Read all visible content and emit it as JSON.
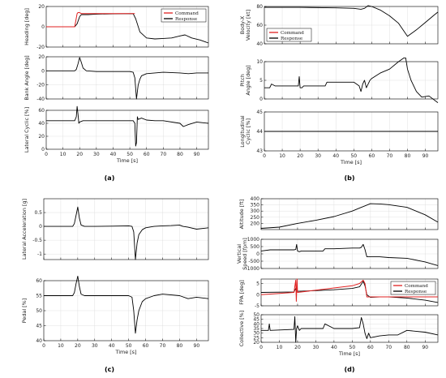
{
  "figure_labels": [
    "(a)",
    "(b)",
    "(c)",
    "(d)"
  ],
  "x_axis_label": "Time [s]",
  "legend": {
    "command": "Command",
    "response": "Response"
  },
  "colors": {
    "command": "#e02020",
    "response": "#000000",
    "grid": "#d9d9d9"
  },
  "chart_data": [
    {
      "type": "line",
      "id": "a1",
      "panel": "(a)",
      "ylabel": "Heading [deg]",
      "xlim": [
        0,
        97
      ],
      "ylim": [
        -20,
        20
      ],
      "yticks": [
        -20,
        0,
        20
      ],
      "legend": [
        "Command",
        "Response"
      ],
      "legend_position": "top-right",
      "grid": true,
      "series": [
        {
          "name": "Command",
          "color": "#e02020",
          "x": [
            0,
            17,
            18.5,
            19,
            20,
            21,
            21.5,
            53
          ],
          "y": [
            0,
            0,
            13,
            14,
            14,
            13,
            13,
            13
          ]
        },
        {
          "name": "Response",
          "color": "#000000",
          "x": [
            0,
            17,
            18.5,
            20,
            21,
            25,
            30,
            40,
            52,
            53.5,
            56,
            60,
            65,
            70,
            75,
            80,
            83,
            87,
            92,
            97
          ],
          "y": [
            0,
            0,
            3,
            10,
            12,
            12,
            12.5,
            12.8,
            13,
            8,
            -5,
            -11,
            -12,
            -11.5,
            -11,
            -9,
            -8,
            -11,
            -13,
            -16
          ]
        }
      ]
    },
    {
      "type": "line",
      "id": "a2",
      "panel": "(a)",
      "ylabel": "Bank Angle [deg]",
      "xlim": [
        0,
        97
      ],
      "ylim": [
        -40,
        20
      ],
      "yticks": [
        -40,
        -20,
        0,
        20
      ],
      "grid": true,
      "series": [
        {
          "name": "Response",
          "color": "#000000",
          "x": [
            0,
            17,
            18,
            19,
            20,
            21,
            22,
            24,
            30,
            40,
            50,
            52,
            53,
            54,
            55,
            56,
            57,
            60,
            65,
            70,
            80,
            85,
            90,
            97
          ],
          "y": [
            0,
            0,
            2,
            10,
            19,
            12,
            4,
            0,
            -1,
            -1,
            -1,
            -2,
            -10,
            -40,
            -20,
            -12,
            -7,
            -4,
            -3,
            -2,
            -3,
            -4,
            -3,
            -3
          ]
        }
      ]
    },
    {
      "type": "line",
      "id": "a3",
      "panel": "(a)",
      "ylabel": "Lateral Cyclic [%]",
      "xlabel": "Time [s]",
      "xlim": [
        0,
        97
      ],
      "ylim": [
        0,
        60
      ],
      "yticks": [
        0,
        20,
        40,
        60
      ],
      "xticks": [
        0,
        10,
        20,
        30,
        40,
        50,
        60,
        70,
        80,
        90
      ],
      "grid": true,
      "series": [
        {
          "name": "Response",
          "color": "#000000",
          "x": [
            0,
            17,
            18,
            18.5,
            19,
            19.5,
            20,
            22,
            30,
            40,
            50,
            52,
            53,
            53.5,
            54,
            54.5,
            55,
            57,
            60,
            65,
            70,
            80,
            82,
            85,
            90,
            97
          ],
          "y": [
            44,
            44,
            50,
            66,
            54,
            40,
            42,
            44,
            44,
            44,
            44,
            44,
            40,
            5,
            10,
            50,
            46,
            48,
            45,
            44,
            44,
            40,
            35,
            38,
            42,
            40
          ]
        }
      ]
    },
    {
      "type": "line",
      "id": "b1",
      "panel": "(b)",
      "ylabel": "Body-X Velocity [kt]",
      "xlim": [
        0,
        97
      ],
      "ylim": [
        40,
        80
      ],
      "yticks": [
        40,
        60,
        80
      ],
      "legend": [
        "Command",
        "Response"
      ],
      "legend_position": "bottom-left",
      "grid": true,
      "series": [
        {
          "name": "Response",
          "color": "#000000",
          "x": [
            0,
            20,
            40,
            50,
            54,
            56,
            58,
            60,
            65,
            70,
            75,
            80,
            85,
            90,
            95,
            97
          ],
          "y": [
            79,
            79,
            78.5,
            78,
            77,
            78,
            81,
            80,
            76,
            70,
            62,
            48,
            55,
            63,
            71,
            74
          ]
        }
      ]
    },
    {
      "type": "line",
      "id": "b2",
      "panel": "(b)",
      "ylabel": "Pitch Angle [deg]",
      "xlim": [
        0,
        97
      ],
      "ylim": [
        0,
        10
      ],
      "yticks": [
        0,
        5,
        10
      ],
      "grid": true,
      "series": [
        {
          "name": "Response",
          "color": "#000000",
          "x": [
            0,
            3,
            4,
            6,
            18,
            19,
            19.5,
            20,
            21,
            22,
            30,
            34,
            35,
            40,
            50,
            53,
            54,
            55,
            56,
            57,
            58,
            59,
            60,
            65,
            70,
            75,
            78,
            79,
            80,
            82,
            85,
            88,
            92,
            97
          ],
          "y": [
            3,
            3,
            4,
            3.5,
            3.5,
            3.5,
            6,
            3,
            3,
            3.5,
            3.5,
            3.5,
            4.5,
            4.5,
            4.5,
            3.5,
            2,
            4,
            5,
            3,
            4,
            5,
            5.5,
            7,
            8,
            10,
            11,
            11,
            8,
            5,
            2,
            0.5,
            0.8,
            -1
          ]
        }
      ]
    },
    {
      "type": "line",
      "id": "b3",
      "panel": "(b)",
      "ylabel": "Longitudinal Cyclic [%]",
      "xlabel": "Time [s]",
      "xlim": [
        0,
        97
      ],
      "ylim": [
        43,
        45
      ],
      "yticks": [
        43,
        44,
        45
      ],
      "xticks": [
        0,
        10,
        20,
        30,
        40,
        50,
        60,
        70,
        80,
        90
      ],
      "grid": true,
      "series": [
        {
          "name": "Response",
          "color": "#000000",
          "x": [
            0,
            97
          ],
          "y": [
            44,
            44
          ]
        }
      ]
    },
    {
      "type": "line",
      "id": "c1",
      "panel": "(c)",
      "ylabel": "Lateral Acceleration [g]",
      "xlim": [
        0,
        97
      ],
      "ylim": [
        -1.2,
        1
      ],
      "yticks": [
        -1,
        -0.5,
        0,
        0.5
      ],
      "grid": true,
      "series": [
        {
          "name": "Response",
          "color": "#000000",
          "x": [
            0,
            17,
            18,
            19,
            20,
            21,
            22,
            24,
            30,
            40,
            50,
            52,
            53,
            54,
            55,
            56,
            58,
            60,
            65,
            70,
            75,
            80,
            82,
            85,
            90,
            97
          ],
          "y": [
            0,
            0,
            0.1,
            0.4,
            0.7,
            0.3,
            0.05,
            0,
            0,
            0.01,
            0.02,
            0,
            -0.2,
            -1.2,
            -0.6,
            -0.3,
            -0.12,
            -0.05,
            0,
            0.02,
            0.03,
            0.05,
            0,
            -0.03,
            -0.1,
            -0.05
          ]
        }
      ]
    },
    {
      "type": "line",
      "id": "c2",
      "panel": "(c)",
      "ylabel": "Pedal [%]",
      "xlabel": "Time [s]",
      "xlim": [
        0,
        97
      ],
      "ylim": [
        40,
        60
      ],
      "yticks": [
        40,
        45,
        50,
        55,
        60
      ],
      "xticks": [
        0,
        10,
        20,
        30,
        40,
        50,
        60,
        70,
        80,
        90
      ],
      "grid": true,
      "series": [
        {
          "name": "Response",
          "color": "#000000",
          "x": [
            0,
            17,
            18,
            19,
            20,
            21,
            22,
            24,
            30,
            40,
            50,
            52,
            53,
            54,
            55,
            56,
            58,
            60,
            65,
            70,
            80,
            85,
            90,
            97
          ],
          "y": [
            55,
            55,
            56,
            59,
            61.5,
            58,
            55.5,
            55,
            55,
            55,
            55,
            54.5,
            50,
            42.5,
            47,
            50,
            53,
            54,
            55,
            55.5,
            55,
            54,
            54.5,
            54
          ]
        }
      ]
    },
    {
      "type": "line",
      "id": "d1",
      "panel": "(d)",
      "ylabel": "Altitude [ft]",
      "xlim": [
        0,
        97
      ],
      "ylim": [
        150,
        400
      ],
      "yticks": [
        200,
        250,
        300,
        350,
        400
      ],
      "grid": true,
      "series": [
        {
          "name": "Response",
          "color": "#000000",
          "x": [
            0,
            10,
            20,
            30,
            40,
            50,
            55,
            60,
            65,
            70,
            80,
            90,
            97
          ],
          "y": [
            160,
            170,
            200,
            225,
            255,
            300,
            330,
            360,
            358,
            352,
            330,
            270,
            210
          ]
        }
      ]
    },
    {
      "type": "line",
      "id": "d2",
      "panel": "(d)",
      "ylabel": "Vertical Speed [fpm]",
      "xlim": [
        0,
        97
      ],
      "ylim": [
        -1000,
        1000
      ],
      "yticks": [
        -1000,
        -500,
        0,
        500,
        1000
      ],
      "grid": true,
      "series": [
        {
          "name": "Response",
          "color": "#000000",
          "x": [
            0,
            5,
            18,
            19,
            19.5,
            20,
            21,
            22,
            34,
            35,
            40,
            50,
            54,
            55,
            56,
            57,
            58,
            60,
            65,
            70,
            80,
            90,
            97
          ],
          "y": [
            200,
            280,
            280,
            300,
            650,
            200,
            150,
            200,
            200,
            350,
            350,
            400,
            400,
            450,
            650,
            300,
            -200,
            -200,
            -200,
            -250,
            -300,
            -550,
            -800
          ]
        }
      ]
    },
    {
      "type": "line",
      "id": "d3",
      "panel": "(d)",
      "ylabel": "FPA [deg]",
      "xlim": [
        0,
        97
      ],
      "ylim": [
        -5,
        7
      ],
      "yticks": [
        -5,
        0,
        5
      ],
      "legend": [
        "Command",
        "Response"
      ],
      "legend_position": "top-right",
      "grid": true,
      "series": [
        {
          "name": "Command",
          "color": "#e02020",
          "x": [
            0,
            18,
            19,
            19.3,
            19.7,
            20,
            30,
            40,
            50,
            54,
            56,
            57,
            58,
            60,
            97
          ],
          "y": [
            0,
            1,
            6.5,
            -3,
            7,
            1,
            2,
            3,
            4,
            5,
            6.5,
            5,
            -1,
            -1,
            -1
          ]
        },
        {
          "name": "Response",
          "color": "#000000",
          "x": [
            0,
            18,
            19,
            20,
            22,
            30,
            40,
            50,
            54,
            56,
            57,
            58,
            60,
            65,
            70,
            80,
            90,
            97
          ],
          "y": [
            1,
            1.2,
            2.8,
            1.5,
            1.6,
            1.8,
            2.2,
            2.8,
            3.5,
            6,
            4,
            0,
            -1.2,
            -1,
            -1,
            -1.5,
            -2.5,
            -3.5
          ]
        }
      ]
    },
    {
      "type": "line",
      "id": "d4",
      "panel": "(d)",
      "ylabel": "Collective [%]",
      "xlabel": "Time [s]",
      "xlim": [
        0,
        97
      ],
      "ylim": [
        20,
        50
      ],
      "yticks": [
        20,
        25,
        30,
        35,
        40,
        45,
        50
      ],
      "xticks": [
        0,
        10,
        20,
        30,
        40,
        50,
        60,
        70,
        80,
        90
      ],
      "grid": true,
      "series": [
        {
          "name": "Response",
          "color": "#000000",
          "x": [
            0,
            4,
            4.5,
            5,
            18,
            18.5,
            19,
            19.5,
            20,
            21,
            22,
            30,
            34,
            35,
            40,
            50,
            54,
            55,
            56,
            57,
            58,
            59,
            60,
            65,
            70,
            75,
            80,
            85,
            90,
            97
          ],
          "y": [
            33,
            33,
            40,
            33,
            34,
            48,
            20,
            35,
            38,
            33,
            35,
            35,
            35,
            40,
            35,
            35,
            36,
            47,
            40,
            30,
            24,
            30,
            25,
            27,
            28,
            28,
            33,
            32,
            31,
            28
          ]
        }
      ]
    }
  ]
}
